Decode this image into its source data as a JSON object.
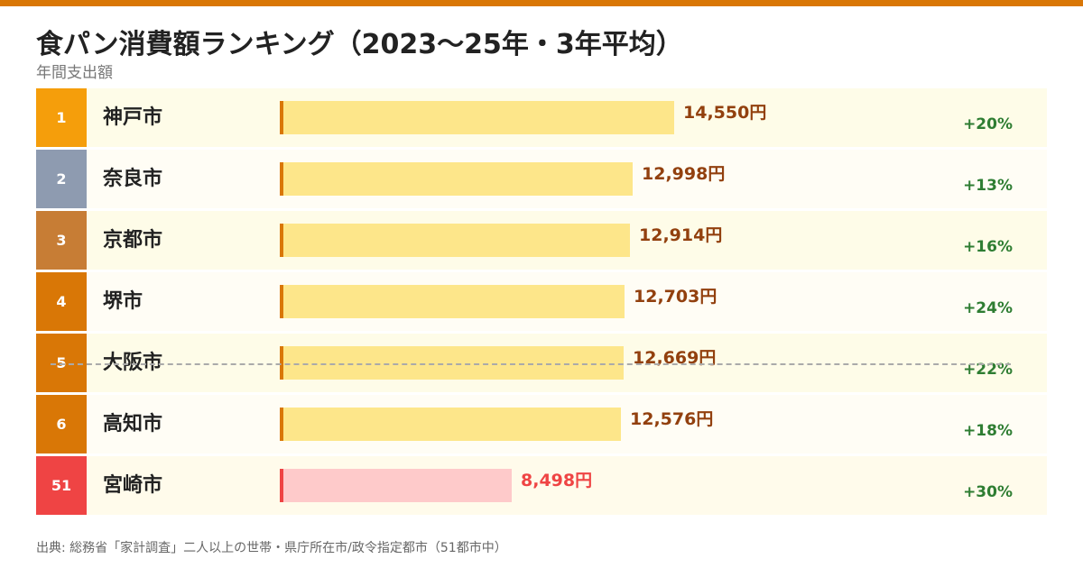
{
  "title": "食パン消費額ランキング（2023〜25年・3年平均）",
  "subtitle": "年間支出額",
  "source": "出典: 総務省「家計調査」二人以上の世帯・県庁所在市/政令指定都市（51都市中）",
  "colors": {
    "accent": "#d97706",
    "bar": "#fde68a",
    "bar_accent": "#d97706",
    "value_text": "#92400e",
    "highlight_bar": "#fecaca",
    "highlight": "#ef4444",
    "change_text": "#2e7d32"
  },
  "chart_data": {
    "type": "bar",
    "title": "食パン消費額ランキング（2023〜25年・3年平均）",
    "ylabel": "年間支出額",
    "unit": "円",
    "xlim": [
      0,
      16000
    ],
    "rows": [
      {
        "rank": "1",
        "city": "神戸市",
        "value": 14550,
        "value_label": "14,550円",
        "change": "+20%",
        "rank_color": "#f59e0b",
        "highlight": false
      },
      {
        "rank": "2",
        "city": "奈良市",
        "value": 12998,
        "value_label": "12,998円",
        "change": "+13%",
        "rank_color": "#8e9bb0",
        "highlight": false
      },
      {
        "rank": "3",
        "city": "京都市",
        "value": 12914,
        "value_label": "12,914円",
        "change": "+16%",
        "rank_color": "#c77d35",
        "highlight": false
      },
      {
        "rank": "4",
        "city": "堺市",
        "value": 12703,
        "value_label": "12,703円",
        "change": "+24%",
        "rank_color": "#d97706",
        "highlight": false
      },
      {
        "rank": "5",
        "city": "大阪市",
        "value": 12669,
        "value_label": "12,669円",
        "change": "+22%",
        "rank_color": "#d97706",
        "highlight": false
      },
      {
        "rank": "6",
        "city": "高知市",
        "value": 12576,
        "value_label": "12,576円",
        "change": "+18%",
        "rank_color": "#d97706",
        "highlight": false
      },
      {
        "rank": "51",
        "city": "宮崎市",
        "value": 8498,
        "value_label": "8,498円",
        "change": "+30%",
        "rank_color": "#ef4444",
        "highlight": true
      }
    ]
  }
}
